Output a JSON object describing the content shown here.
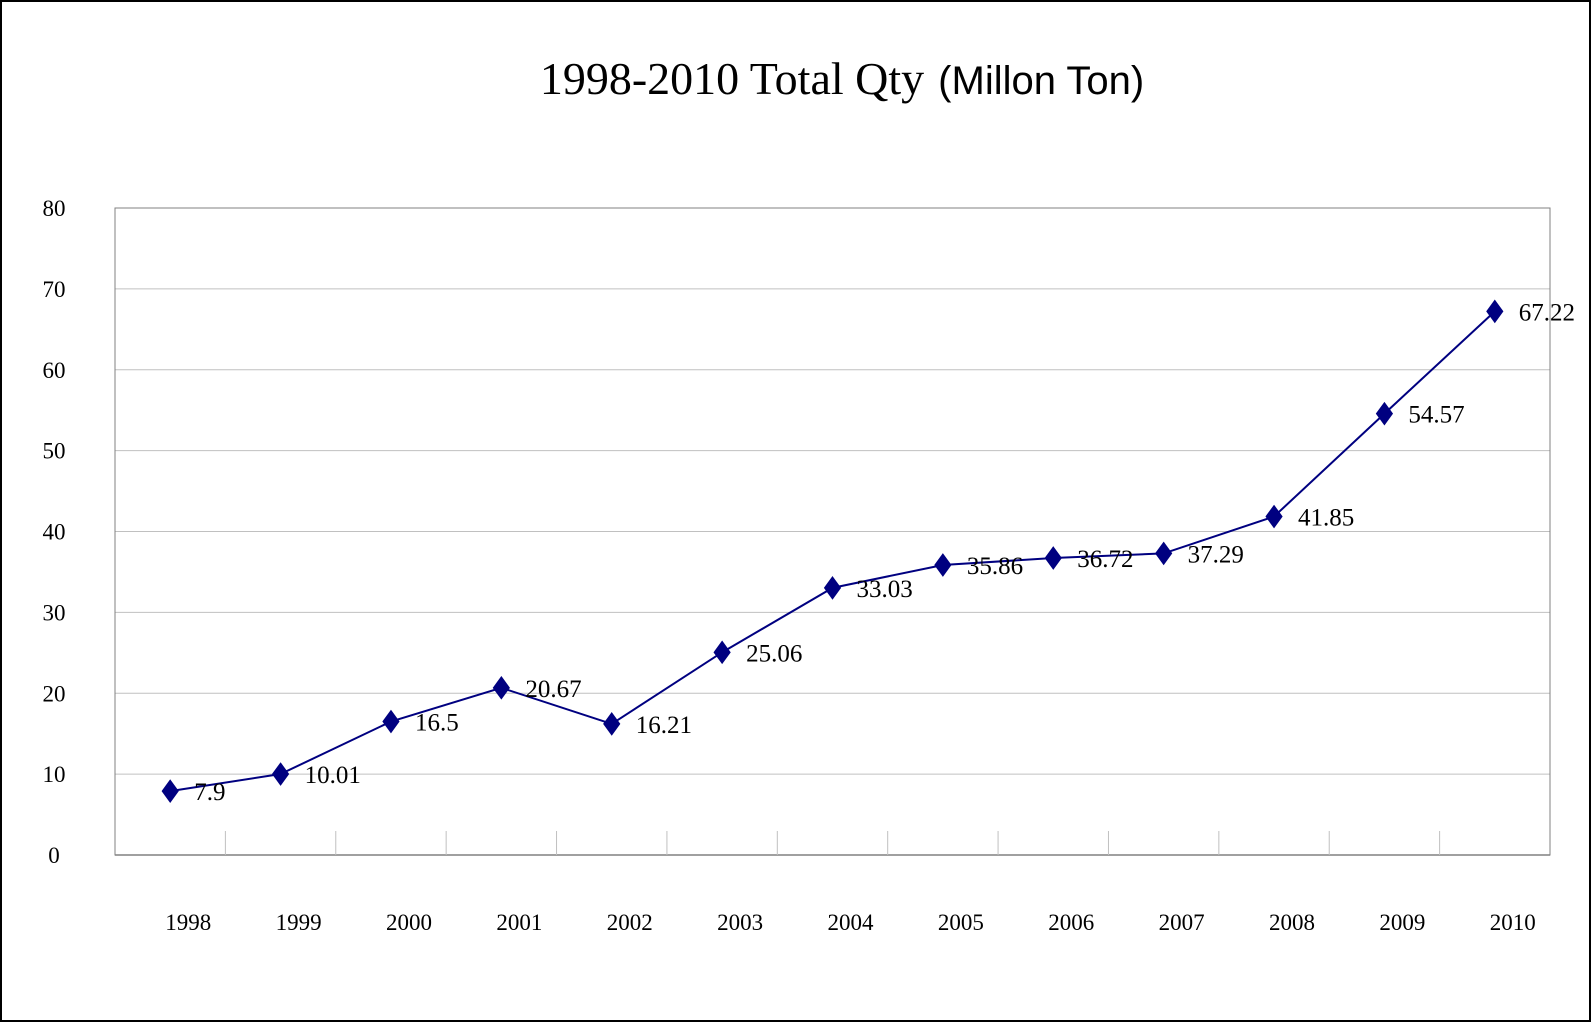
{
  "chart_data": {
    "type": "line",
    "title_main": "1998-2010 Total Qty",
    "title_unit": "(Millon Ton)",
    "categories": [
      "1998",
      "1999",
      "2000",
      "2001",
      "2002",
      "2003",
      "2004",
      "2005",
      "2006",
      "2007",
      "2008",
      "2009",
      "2010"
    ],
    "values": [
      7.9,
      10.01,
      16.5,
      20.67,
      16.21,
      25.06,
      33.03,
      35.86,
      36.72,
      37.29,
      41.85,
      54.57,
      67.22
    ],
    "data_labels": [
      "7.9",
      "10.01",
      "16.5",
      "20.67",
      "16.21",
      "25.06",
      "33.03",
      "35.86",
      "36.72",
      "37.29",
      "41.85",
      "54.57",
      "67.22"
    ],
    "yticks": [
      0,
      10,
      20,
      30,
      40,
      50,
      60,
      70,
      80
    ],
    "ylim": [
      0,
      80
    ],
    "xlabel": "",
    "ylabel": "",
    "grid": true,
    "legend": false,
    "series_color": "#000080",
    "grid_color": "#c0c0c0"
  }
}
